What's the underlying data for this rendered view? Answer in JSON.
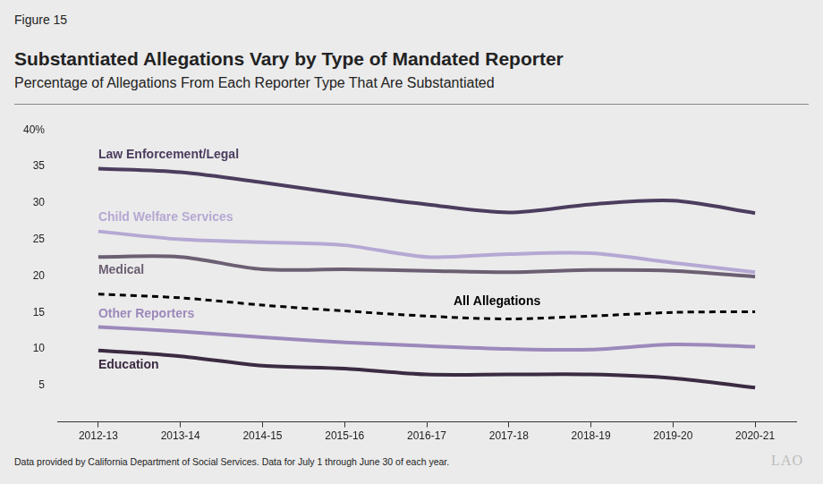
{
  "figure_label": "Figure 15",
  "title": "Substantiated Allegations Vary by Type of Mandated Reporter",
  "subtitle": "Percentage of Allegations From Each Reporter Type That Are Substantiated",
  "note": "Data provided by California Department of Social Services. Data for July 1 through June 30 of each year.",
  "logo": "LAO",
  "chart_data": {
    "type": "line",
    "categories": [
      "2012-13",
      "2013-14",
      "2014-15",
      "2015-16",
      "2016-17",
      "2017-18",
      "2018-19",
      "2019-20",
      "2020-21"
    ],
    "marker": "none",
    "grid": false,
    "ylim": [
      0,
      40
    ],
    "yticks": [
      5,
      10,
      15,
      20,
      25,
      30,
      35,
      {
        "value": 40,
        "label": "40%"
      }
    ],
    "series": [
      {
        "name": "Law Enforcement/Legal",
        "color": "#4b3d5e",
        "line_style": "solid",
        "values": [
          34.7,
          34.2,
          32.8,
          31.2,
          29.8,
          28.7,
          29.8,
          30.3,
          28.6
        ]
      },
      {
        "name": "Child Welfare Services",
        "color": "#b5a8d3",
        "line_style": "solid",
        "values": [
          26.1,
          25.0,
          24.6,
          24.2,
          22.6,
          23.0,
          23.1,
          21.8,
          20.5
        ]
      },
      {
        "name": "Medical",
        "color": "#6b5f72",
        "line_style": "solid",
        "values": [
          22.6,
          22.6,
          20.9,
          20.9,
          20.7,
          20.5,
          20.8,
          20.7,
          19.9
        ]
      },
      {
        "name": "All Allegations",
        "color": "#000000",
        "line_style": "dashed",
        "values": [
          17.5,
          17.0,
          16.0,
          15.2,
          14.5,
          14.1,
          14.5,
          15.0,
          15.1
        ]
      },
      {
        "name": "Other Reporters",
        "color": "#9c89bb",
        "line_style": "solid",
        "values": [
          13.0,
          12.4,
          11.6,
          10.9,
          10.4,
          10.0,
          9.9,
          10.6,
          10.3
        ]
      },
      {
        "name": "Education",
        "color": "#3b2b42",
        "line_style": "solid",
        "values": [
          9.8,
          9.0,
          7.7,
          7.3,
          6.5,
          6.5,
          6.5,
          6.0,
          4.7
        ]
      }
    ]
  }
}
